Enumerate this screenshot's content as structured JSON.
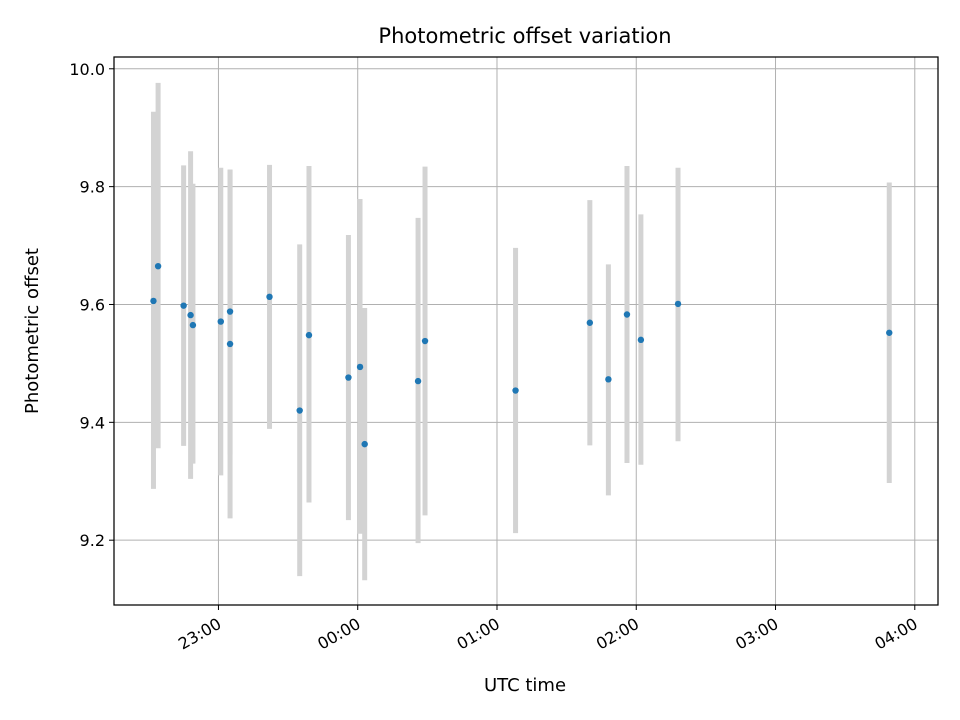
{
  "chart_data": {
    "type": "scatter",
    "title": "Photometric offset variation",
    "xlabel": "UTC time",
    "ylabel": "Photometric offset",
    "xlim": [
      "22:15",
      "04:10"
    ],
    "ylim": [
      9.09,
      10.02
    ],
    "x_ticks": [
      "23:00",
      "00:00",
      "01:00",
      "02:00",
      "03:00",
      "04:00"
    ],
    "y_ticks": [
      9.2,
      9.4,
      9.6,
      9.8,
      10.0
    ],
    "y_tick_labels": [
      "9.2",
      "9.4",
      "9.6",
      "9.8",
      "10.0"
    ],
    "grid": true,
    "point_color": "#1f77b4",
    "errorbar_color": "#d3d3d3",
    "points": [
      {
        "time": "22:32",
        "value": 9.606,
        "low": 9.287,
        "high": 9.927
      },
      {
        "time": "22:34",
        "value": 9.665,
        "low": 9.356,
        "high": 9.976
      },
      {
        "time": "22:45",
        "value": 9.598,
        "low": 9.36,
        "high": 9.836
      },
      {
        "time": "22:48",
        "value": 9.582,
        "low": 9.304,
        "high": 9.86
      },
      {
        "time": "22:49",
        "value": 9.565,
        "low": 9.33,
        "high": 9.805
      },
      {
        "time": "23:01",
        "value": 9.571,
        "low": 9.31,
        "high": 9.832
      },
      {
        "time": "23:05",
        "value": 9.588,
        "low": 9.345,
        "high": 9.829
      },
      {
        "time": "23:05",
        "value": 9.533,
        "low": 9.237,
        "high": 9.828
      },
      {
        "time": "23:22",
        "value": 9.613,
        "low": 9.389,
        "high": 9.837
      },
      {
        "time": "23:35",
        "value": 9.42,
        "low": 9.139,
        "high": 9.702
      },
      {
        "time": "23:39",
        "value": 9.548,
        "low": 9.264,
        "high": 9.835
      },
      {
        "time": "23:56",
        "value": 9.476,
        "low": 9.234,
        "high": 9.718
      },
      {
        "time": "00:01",
        "value": 9.494,
        "low": 9.211,
        "high": 9.779
      },
      {
        "time": "00:03",
        "value": 9.363,
        "low": 9.132,
        "high": 9.594
      },
      {
        "time": "00:26",
        "value": 9.47,
        "low": 9.195,
        "high": 9.747
      },
      {
        "time": "00:29",
        "value": 9.538,
        "low": 9.242,
        "high": 9.834
      },
      {
        "time": "01:08",
        "value": 9.454,
        "low": 9.212,
        "high": 9.696
      },
      {
        "time": "01:40",
        "value": 9.569,
        "low": 9.361,
        "high": 9.777
      },
      {
        "time": "01:48",
        "value": 9.473,
        "low": 9.276,
        "high": 9.668
      },
      {
        "time": "01:56",
        "value": 9.583,
        "low": 9.331,
        "high": 9.835
      },
      {
        "time": "02:02",
        "value": 9.54,
        "low": 9.328,
        "high": 9.753
      },
      {
        "time": "02:18",
        "value": 9.601,
        "low": 9.368,
        "high": 9.832
      },
      {
        "time": "03:49",
        "value": 9.552,
        "low": 9.297,
        "high": 9.807
      }
    ]
  }
}
